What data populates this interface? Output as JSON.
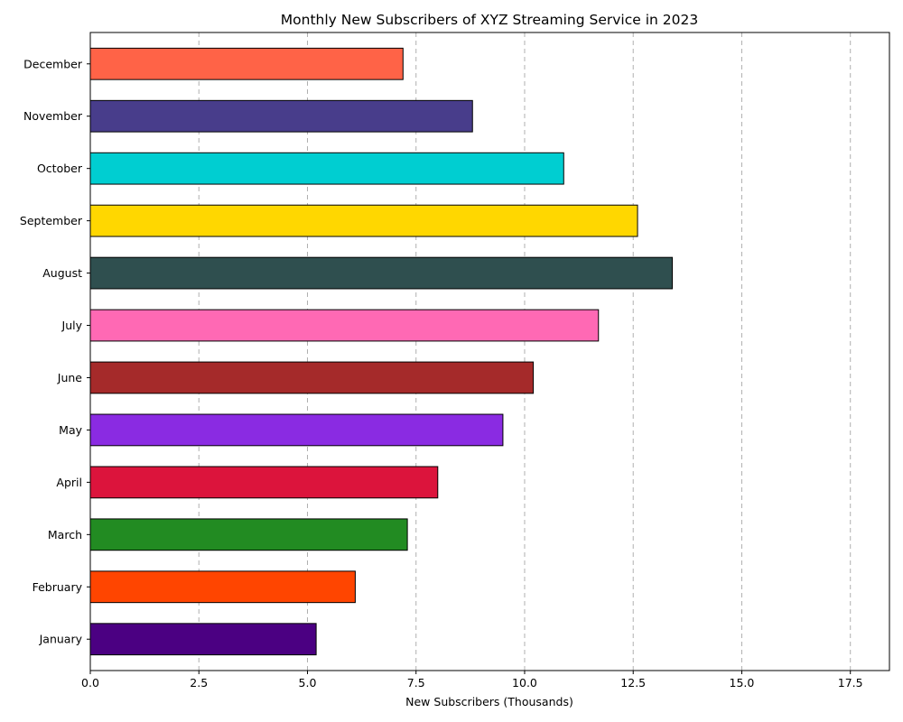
{
  "chart_data": {
    "type": "bar",
    "orientation": "horizontal",
    "title": "Monthly New Subscribers of XYZ Streaming Service in 2023",
    "xlabel": "New Subscribers (Thousands)",
    "ylabel": "",
    "xlim": [
      0,
      18.4
    ],
    "xticks": [
      0.0,
      2.5,
      5.0,
      7.5,
      10.0,
      12.5,
      15.0,
      17.5
    ],
    "xtick_labels": [
      "0.0",
      "2.5",
      "5.0",
      "7.5",
      "10.0",
      "12.5",
      "15.0",
      "17.5"
    ],
    "grid": "x-dashed",
    "categories": [
      "January",
      "February",
      "March",
      "April",
      "May",
      "June",
      "July",
      "August",
      "September",
      "October",
      "November",
      "December"
    ],
    "values": [
      5.2,
      6.1,
      7.3,
      8.0,
      9.5,
      10.2,
      11.7,
      13.4,
      12.6,
      10.9,
      8.8,
      7.2
    ],
    "colors": [
      "#4B0082",
      "#FF4500",
      "#228B22",
      "#DC143C",
      "#8A2BE2",
      "#A52A2A",
      "#FF69B4",
      "#2F4F4F",
      "#FFD700",
      "#00CED1",
      "#483D8B",
      "#FF6347"
    ]
  }
}
